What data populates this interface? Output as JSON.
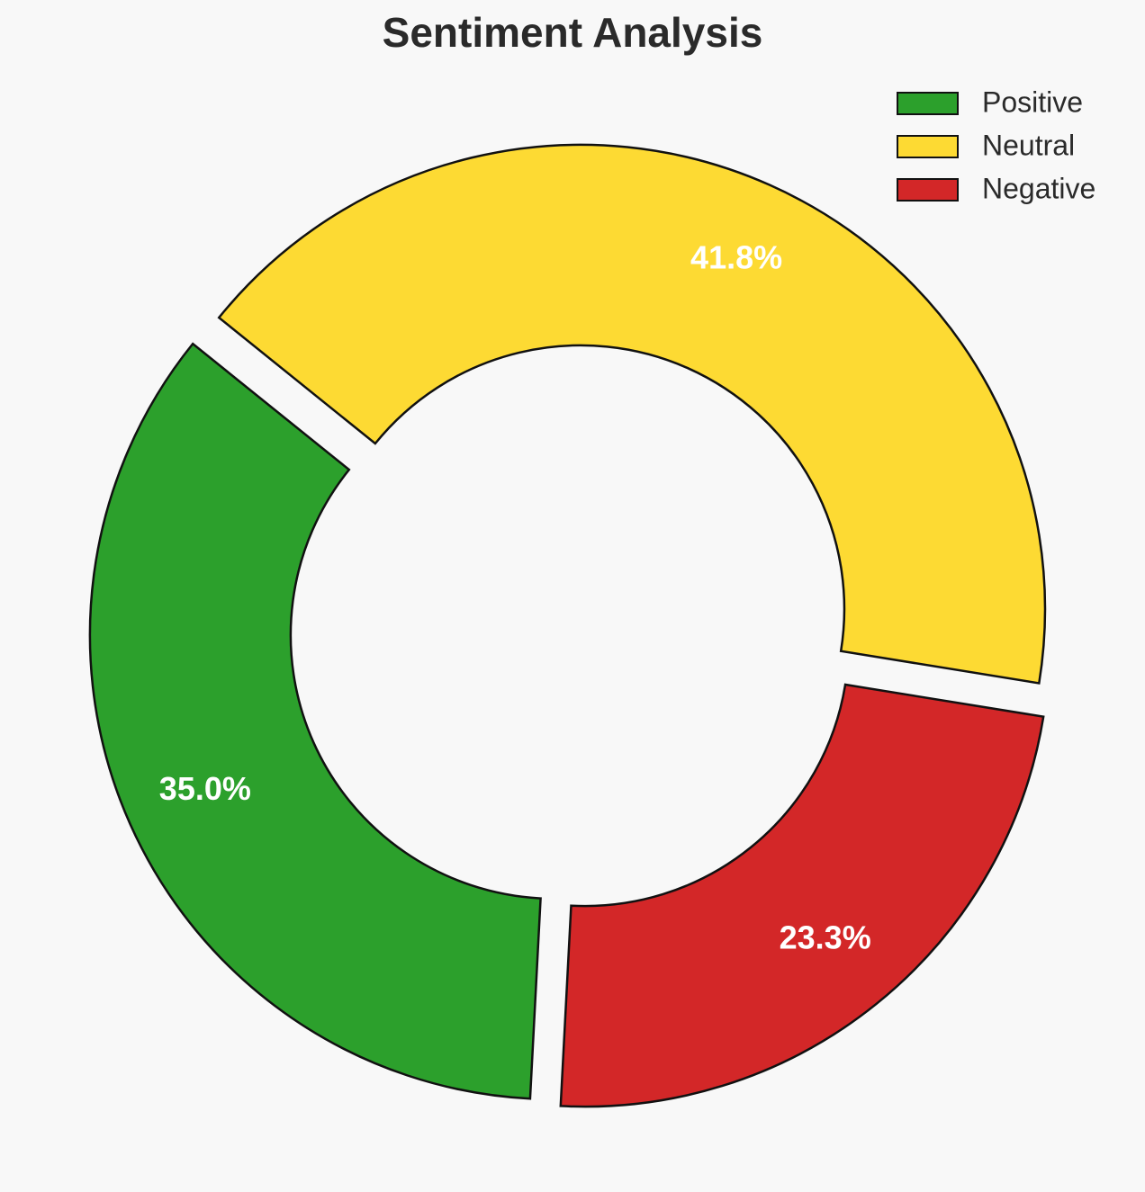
{
  "chart_data": {
    "type": "donut",
    "title": "Sentiment Analysis",
    "categories": [
      "Positive",
      "Neutral",
      "Negative"
    ],
    "values": [
      35,
      41.8,
      23.3
    ],
    "value_labels": [
      "35.0%",
      "41.8%",
      "23.3%"
    ],
    "colors": [
      "#2ca02c",
      "#fdda33",
      "#d32728"
    ],
    "legend": "upper right"
  }
}
